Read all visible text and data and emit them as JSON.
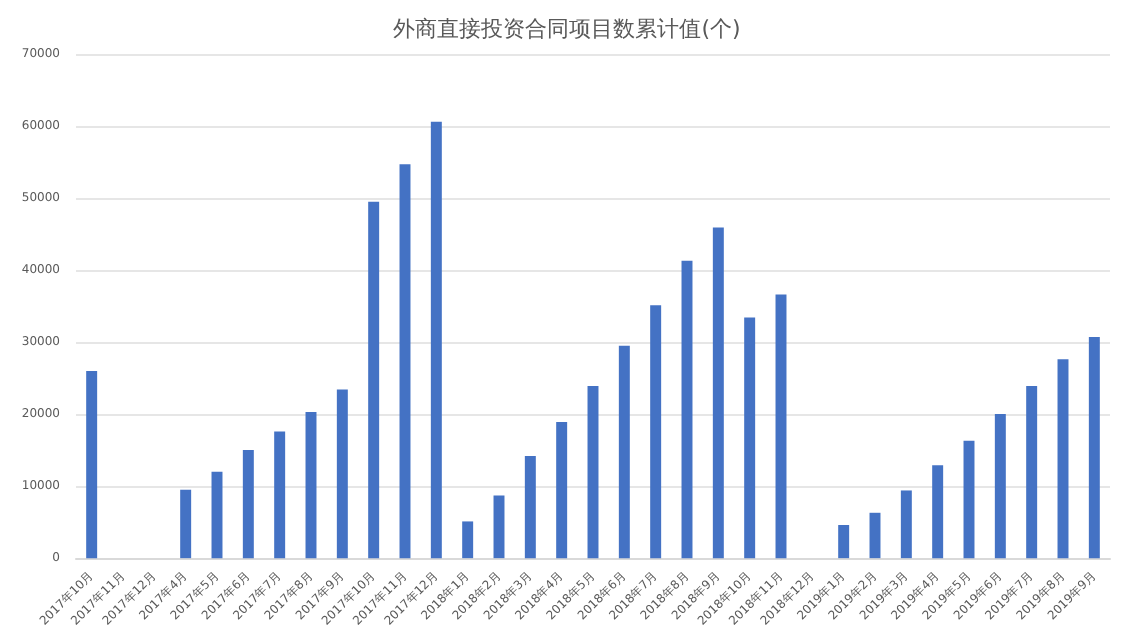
{
  "chart_data": {
    "type": "bar",
    "title": "外商直接投资合同项目数累计值(个)",
    "categories": [
      "2017年10月",
      "2017年11月",
      "2017年12月",
      "2017年4月",
      "2017年5月",
      "2017年6月",
      "2017年7月",
      "2017年8月",
      "2017年9月",
      "2017年10月",
      "2017年11月",
      "2017年12月",
      "2018年1月",
      "2018年2月",
      "2018年3月",
      "2018年4月",
      "2018年5月",
      "2018年6月",
      "2018年7月",
      "2018年8月",
      "2018年9月",
      "2018年10月",
      "2018年11月",
      "2018年12月",
      "2019年1月",
      "2019年2月",
      "2019年3月",
      "2019年4月",
      "2019年5月",
      "2019年6月",
      "2019年7月",
      "2019年8月",
      "2019年9月"
    ],
    "values": [
      26000,
      null,
      null,
      9500,
      12000,
      15000,
      17600,
      20300,
      23400,
      49500,
      54700,
      60600,
      5100,
      8700,
      14200,
      18900,
      23900,
      29500,
      35100,
      41300,
      45900,
      33400,
      36600,
      null,
      4600,
      6300,
      9400,
      12900,
      16300,
      20000,
      23900,
      27600,
      30700
    ],
    "color": "#4472c4",
    "ylim": [
      0,
      70000
    ],
    "yticks": [
      0,
      10000,
      20000,
      30000,
      40000,
      50000,
      60000,
      70000
    ],
    "grid": "y"
  }
}
